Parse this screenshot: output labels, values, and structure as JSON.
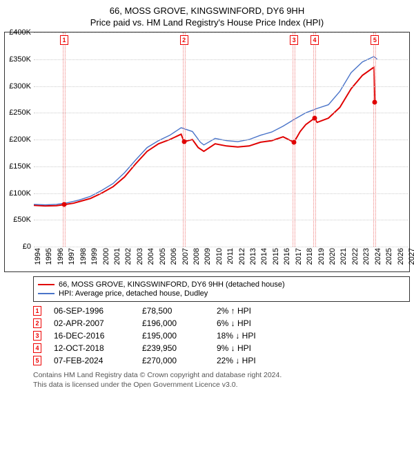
{
  "title": "66, MOSS GROVE, KINGSWINFORD, DY6 9HH",
  "subtitle": "Price paid vs. HM Land Registry's House Price Index (HPI)",
  "chart": {
    "ylim": [
      0,
      400000
    ],
    "ytick_step": 50000,
    "yformat_prefix": "£",
    "ylabels": [
      "£0",
      "£50K",
      "£100K",
      "£150K",
      "£200K",
      "£250K",
      "£300K",
      "£350K",
      "£400K"
    ],
    "xlim": [
      1994,
      2027
    ],
    "xticks": [
      1994,
      1995,
      1996,
      1997,
      1998,
      1999,
      2000,
      2001,
      2002,
      2003,
      2004,
      2005,
      2006,
      2007,
      2008,
      2009,
      2010,
      2011,
      2012,
      2013,
      2014,
      2015,
      2016,
      2017,
      2018,
      2019,
      2020,
      2021,
      2022,
      2023,
      2024,
      2025,
      2026,
      2027
    ],
    "grid_color": "#cccccc",
    "background": "#ffffff",
    "series": [
      {
        "name": "66, MOSS GROVE, KINGSWINFORD, DY6 9HH (detached house)",
        "color": "#e00000",
        "width": 2,
        "points": [
          [
            1994.0,
            77000
          ],
          [
            1995.0,
            76000
          ],
          [
            1996.0,
            76500
          ],
          [
            1996.68,
            78500
          ],
          [
            1997.5,
            81000
          ],
          [
            1998.0,
            84000
          ],
          [
            1999.0,
            90000
          ],
          [
            2000.0,
            100000
          ],
          [
            2001.0,
            112000
          ],
          [
            2002.0,
            130000
          ],
          [
            2003.0,
            155000
          ],
          [
            2004.0,
            178000
          ],
          [
            2005.0,
            192000
          ],
          [
            2006.0,
            200000
          ],
          [
            2007.0,
            210000
          ],
          [
            2007.25,
            196000
          ],
          [
            2008.0,
            200000
          ],
          [
            2008.5,
            185000
          ],
          [
            2009.0,
            178000
          ],
          [
            2010.0,
            192000
          ],
          [
            2011.0,
            188000
          ],
          [
            2012.0,
            186000
          ],
          [
            2013.0,
            188000
          ],
          [
            2014.0,
            195000
          ],
          [
            2015.0,
            198000
          ],
          [
            2016.0,
            205000
          ],
          [
            2016.96,
            195000
          ],
          [
            2017.5,
            215000
          ],
          [
            2018.0,
            228000
          ],
          [
            2018.78,
            239950
          ],
          [
            2019.0,
            232000
          ],
          [
            2020.0,
            240000
          ],
          [
            2021.0,
            260000
          ],
          [
            2022.0,
            295000
          ],
          [
            2023.0,
            320000
          ],
          [
            2024.0,
            335000
          ],
          [
            2024.1,
            270000
          ]
        ],
        "markers": [
          {
            "x": 1996.68,
            "y": 78500
          },
          {
            "x": 2007.25,
            "y": 196000
          },
          {
            "x": 2016.96,
            "y": 195000
          },
          {
            "x": 2018.78,
            "y": 239950
          },
          {
            "x": 2024.1,
            "y": 270000
          }
        ]
      },
      {
        "name": "HPI: Average price, detached house, Dudley",
        "color": "#4a74c9",
        "width": 1.4,
        "points": [
          [
            1994.0,
            79000
          ],
          [
            1995.0,
            78000
          ],
          [
            1996.0,
            79000
          ],
          [
            1997.0,
            82000
          ],
          [
            1998.0,
            87000
          ],
          [
            1999.0,
            94000
          ],
          [
            2000.0,
            105000
          ],
          [
            2001.0,
            118000
          ],
          [
            2002.0,
            138000
          ],
          [
            2003.0,
            162000
          ],
          [
            2004.0,
            185000
          ],
          [
            2005.0,
            198000
          ],
          [
            2006.0,
            208000
          ],
          [
            2007.0,
            222000
          ],
          [
            2008.0,
            215000
          ],
          [
            2008.7,
            195000
          ],
          [
            2009.0,
            190000
          ],
          [
            2010.0,
            202000
          ],
          [
            2011.0,
            198000
          ],
          [
            2012.0,
            196000
          ],
          [
            2013.0,
            200000
          ],
          [
            2014.0,
            208000
          ],
          [
            2015.0,
            214000
          ],
          [
            2016.0,
            225000
          ],
          [
            2017.0,
            238000
          ],
          [
            2018.0,
            250000
          ],
          [
            2019.0,
            258000
          ],
          [
            2020.0,
            265000
          ],
          [
            2021.0,
            290000
          ],
          [
            2022.0,
            325000
          ],
          [
            2023.0,
            345000
          ],
          [
            2024.0,
            355000
          ],
          [
            2024.3,
            350000
          ]
        ],
        "markers": []
      }
    ],
    "flags": [
      {
        "n": "1",
        "x": 1996.68
      },
      {
        "n": "2",
        "x": 2007.25
      },
      {
        "n": "3",
        "x": 2016.96
      },
      {
        "n": "4",
        "x": 2018.78
      },
      {
        "n": "5",
        "x": 2024.1
      }
    ]
  },
  "legend": [
    {
      "color": "#e00000",
      "label": "66, MOSS GROVE, KINGSWINFORD, DY6 9HH (detached house)"
    },
    {
      "color": "#4a74c9",
      "label": "HPI: Average price, detached house, Dudley"
    }
  ],
  "transactions": [
    {
      "n": "1",
      "date": "06-SEP-1996",
      "price": "£78,500",
      "diff": "2% ↑ HPI"
    },
    {
      "n": "2",
      "date": "02-APR-2007",
      "price": "£196,000",
      "diff": "6% ↓ HPI"
    },
    {
      "n": "3",
      "date": "16-DEC-2016",
      "price": "£195,000",
      "diff": "18% ↓ HPI"
    },
    {
      "n": "4",
      "date": "12-OCT-2018",
      "price": "£239,950",
      "diff": "9% ↓ HPI"
    },
    {
      "n": "5",
      "date": "07-FEB-2024",
      "price": "£270,000",
      "diff": "22% ↓ HPI"
    }
  ],
  "footer_line1": "Contains HM Land Registry data © Crown copyright and database right 2024.",
  "footer_line2": "This data is licensed under the Open Government Licence v3.0."
}
